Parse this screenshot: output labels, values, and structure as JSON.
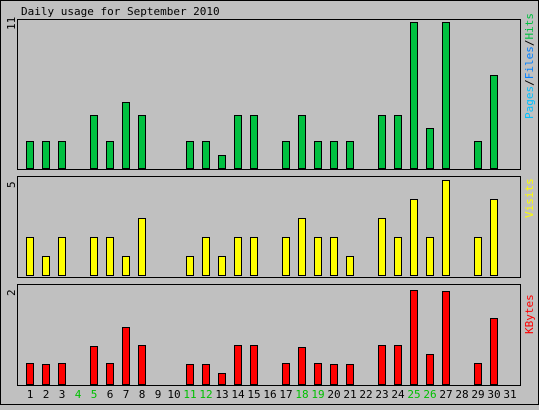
{
  "title": "Daily usage for September 2010",
  "labels": {
    "pages": "Pages",
    "files": "Files",
    "hits": "Hits",
    "slash": "/",
    "visits": "Visits",
    "kbytes": "KBytes"
  },
  "colors": {
    "background": "#c0c0c0",
    "hits": "#00c040",
    "files": "#0080ff",
    "pages": "#00c0ff",
    "visits": "#ffff00",
    "kbytes": "#ff0000",
    "weekend_label": "#00c000",
    "weekday_label": "#000000"
  },
  "chart_data": [
    {
      "type": "bar",
      "name": "hits-panel",
      "ymax_label": "11",
      "ylim": [
        0,
        11
      ],
      "x": [
        1,
        2,
        3,
        4,
        5,
        6,
        7,
        8,
        9,
        10,
        11,
        12,
        13,
        14,
        15,
        16,
        17,
        18,
        19,
        20,
        21,
        22,
        23,
        24,
        25,
        26,
        27,
        28,
        29,
        30,
        31
      ],
      "series": [
        {
          "name": "Hits",
          "values": [
            2,
            2,
            2,
            0,
            4,
            2,
            5,
            4,
            0,
            0,
            2,
            2,
            1,
            4,
            4,
            0,
            2,
            4,
            2,
            2,
            2,
            0,
            4,
            4,
            11,
            3,
            11,
            0,
            2,
            7,
            0
          ]
        }
      ]
    },
    {
      "type": "bar",
      "name": "visits-panel",
      "ymax_label": "5",
      "ylim": [
        0,
        5
      ],
      "x": [
        1,
        2,
        3,
        4,
        5,
        6,
        7,
        8,
        9,
        10,
        11,
        12,
        13,
        14,
        15,
        16,
        17,
        18,
        19,
        20,
        21,
        22,
        23,
        24,
        25,
        26,
        27,
        28,
        29,
        30,
        31
      ],
      "series": [
        {
          "name": "Visits",
          "values": [
            2,
            1,
            2,
            0,
            2,
            2,
            1,
            3,
            0,
            0,
            1,
            2,
            1,
            2,
            2,
            0,
            2,
            3,
            2,
            2,
            1,
            0,
            3,
            2,
            4,
            2,
            5,
            0,
            2,
            4,
            0
          ]
        }
      ]
    },
    {
      "type": "bar",
      "name": "kbytes-panel",
      "ymax_label": "2",
      "ylim": [
        0,
        2
      ],
      "x": [
        1,
        2,
        3,
        4,
        5,
        6,
        7,
        8,
        9,
        10,
        11,
        12,
        13,
        14,
        15,
        16,
        17,
        18,
        19,
        20,
        21,
        22,
        23,
        24,
        25,
        26,
        27,
        28,
        29,
        30,
        31
      ],
      "series": [
        {
          "name": "KBytes",
          "values": [
            0.45,
            0.42,
            0.45,
            0,
            0.8,
            0.45,
            1.19,
            0.82,
            0,
            0,
            0.42,
            0.42,
            0.23,
            0.82,
            0.82,
            0,
            0.45,
            0.78,
            0.45,
            0.42,
            0.42,
            0,
            0.82,
            0.82,
            1.98,
            0.64,
            1.96,
            0,
            0.45,
            1.38,
            0
          ]
        }
      ]
    }
  ],
  "x_tick_labels": [
    "1",
    "2",
    "3",
    "4",
    "5",
    "6",
    "7",
    "8",
    "9",
    "10",
    "11",
    "12",
    "13",
    "14",
    "15",
    "16",
    "17",
    "18",
    "19",
    "20",
    "21",
    "22",
    "23",
    "24",
    "25",
    "26",
    "27",
    "28",
    "29",
    "30",
    "31"
  ],
  "weekend_days": [
    4,
    5,
    11,
    12,
    18,
    19,
    25,
    26
  ]
}
